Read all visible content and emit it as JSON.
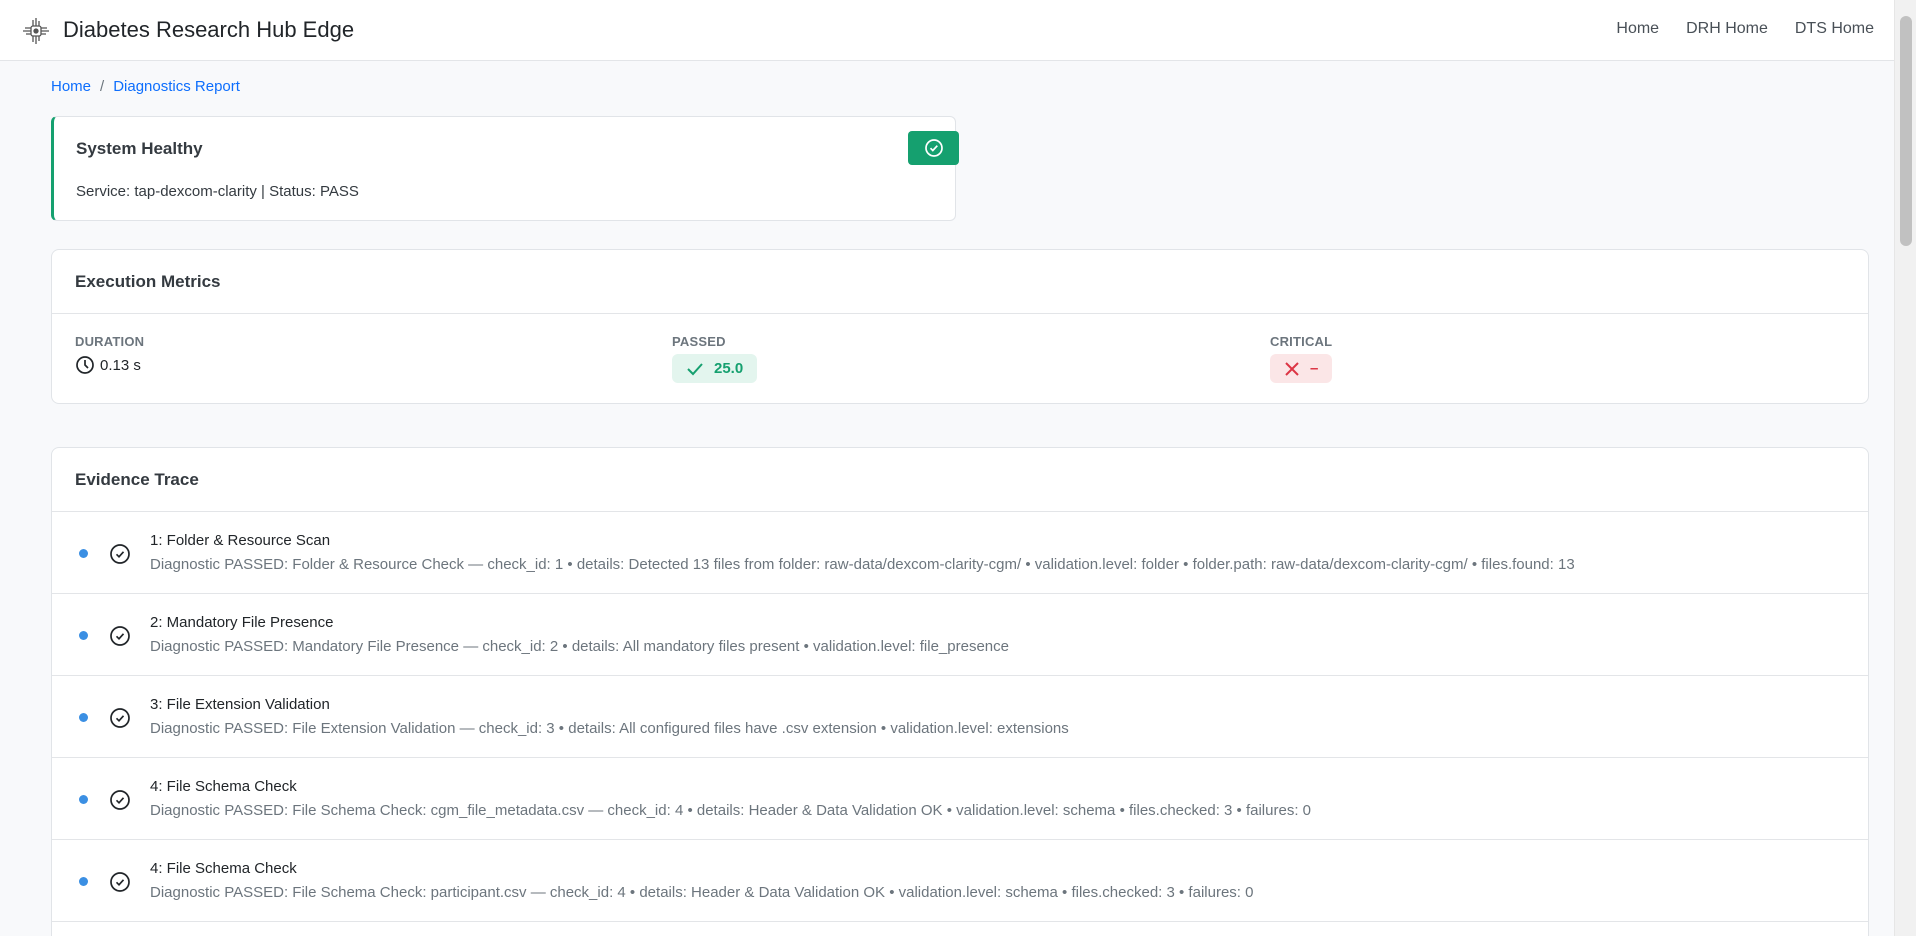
{
  "navbar": {
    "title": "Diabetes Research Hub Edge",
    "links": [
      "Home",
      "DRH Home",
      "DTS Home"
    ]
  },
  "breadcrumb": {
    "home": "Home",
    "current": "Diagnostics Report"
  },
  "health": {
    "title": "System Healthy",
    "subtitle": "Service: tap-dexcom-clarity | Status: PASS",
    "color": "#15a06f"
  },
  "metrics": {
    "title": "Execution Metrics",
    "duration_label": "DURATION",
    "duration_value": "0.13 s",
    "passed_label": "PASSED",
    "passed_value": "25.0",
    "critical_label": "CRITICAL",
    "critical_value": "–"
  },
  "evidence": {
    "title": "Evidence Trace",
    "items": [
      {
        "title": "1: Folder & Resource Scan",
        "desc": "Diagnostic PASSED: Folder & Resource Check — check_id: 1 • details: Detected 13 files from folder: raw-data/dexcom-clarity-cgm/ • validation.level: folder • folder.path: raw-data/dexcom-clarity-cgm/ • files.found: 13"
      },
      {
        "title": "2: Mandatory File Presence",
        "desc": "Diagnostic PASSED: Mandatory File Presence — check_id: 2 • details: All mandatory files present • validation.level: file_presence"
      },
      {
        "title": "3: File Extension Validation",
        "desc": "Diagnostic PASSED: File Extension Validation — check_id: 3 • details: All configured files have .csv extension • validation.level: extensions"
      },
      {
        "title": "4: File Schema Check",
        "desc": "Diagnostic PASSED: File Schema Check: cgm_file_metadata.csv — check_id: 4 • details: Header & Data Validation OK • validation.level: schema • files.checked: 3 • failures: 0"
      },
      {
        "title": "4: File Schema Check",
        "desc": "Diagnostic PASSED: File Schema Check: participant.csv — check_id: 4 • details: Header & Data Validation OK • validation.level: schema • files.checked: 3 • failures: 0"
      }
    ]
  }
}
